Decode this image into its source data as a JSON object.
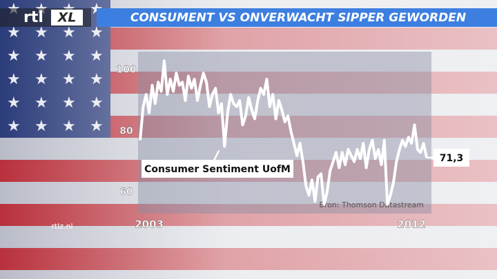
{
  "chart_data": {
    "type": "line",
    "title": "CONSUMENT VS ONVERWACHT SIPPER GEWORDEN",
    "logo": [
      "rtl",
      "XL"
    ],
    "site": "rtlz.nl",
    "source": "Bron: Thomson Datastream",
    "categories": [
      null,
      null,
      null,
      "2003",
      null,
      null,
      null,
      null,
      null,
      null,
      null,
      null,
      null,
      null,
      null,
      null,
      null,
      null,
      null,
      null,
      null,
      null,
      null,
      null,
      null,
      null,
      null,
      null,
      null,
      null,
      null,
      null,
      null,
      null,
      null,
      null,
      null,
      null,
      null,
      null,
      null,
      null,
      null,
      null,
      null,
      null,
      null,
      null,
      null,
      null,
      null,
      null,
      null,
      null,
      null,
      null,
      null,
      null,
      null,
      null,
      null,
      null,
      null,
      null,
      null,
      null,
      null,
      null,
      null,
      null,
      null,
      null,
      null,
      null,
      null,
      null,
      null,
      null,
      null,
      null,
      null,
      null,
      null,
      null,
      null,
      null,
      null,
      null,
      null,
      null,
      "2012",
      null,
      null,
      null,
      null,
      null
    ],
    "series": [
      {
        "name": "Consumer Sentiment UofM",
        "color": "#ffffff",
        "values": [
          77,
          88,
          92,
          86,
          95,
          89,
          96,
          93,
          103,
          92,
          97,
          93,
          99,
          95,
          96,
          90,
          98,
          94,
          97,
          90,
          95,
          99,
          96,
          88,
          92,
          94,
          86,
          89,
          75,
          86,
          92,
          89,
          88,
          90,
          82,
          85,
          91,
          87,
          84,
          90,
          94,
          92,
          97,
          88,
          92,
          84,
          90,
          87,
          83,
          85,
          80,
          76,
          72,
          76,
          70,
          62,
          59,
          64,
          57,
          65,
          66,
          56,
          60,
          67,
          70,
          73,
          68,
          73,
          69,
          74,
          72,
          70,
          74,
          71,
          76,
          68,
          74,
          77,
          71,
          74,
          69,
          77,
          56,
          59,
          63,
          70,
          74,
          77,
          75,
          78,
          76,
          82,
          74,
          73,
          76,
          71.3
        ],
        "value_labels": [
          null,
          null,
          null,
          null,
          null,
          null,
          null,
          null,
          null,
          null,
          null,
          null,
          null,
          null,
          null,
          null,
          null,
          null,
          null,
          null,
          null,
          null,
          null,
          null,
          null,
          null,
          null,
          null,
          null,
          null,
          null,
          null,
          null,
          null,
          null,
          null,
          null,
          null,
          null,
          null,
          null,
          null,
          null,
          null,
          null,
          null,
          null,
          null,
          null,
          null,
          null,
          null,
          null,
          null,
          null,
          null,
          null,
          null,
          null,
          null,
          null,
          null,
          null,
          null,
          null,
          null,
          null,
          null,
          null,
          null,
          null,
          null,
          null,
          null,
          null,
          null,
          null,
          null,
          null,
          null,
          null,
          null,
          null,
          null,
          null,
          null,
          null,
          null,
          null,
          null,
          null,
          null,
          null,
          null,
          null,
          "71,3"
        ]
      }
    ],
    "ylim": [
      53,
      106
    ],
    "yticks": [
      60,
      80,
      100
    ]
  }
}
